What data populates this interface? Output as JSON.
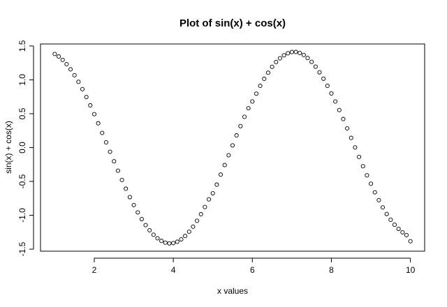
{
  "chart_data": {
    "type": "scatter",
    "title": "Plot of sin(x) + cos(x)",
    "xlabel": "x values",
    "ylabel": "sin(x) + cos(x)",
    "xlim": [
      0.64,
      10.36
    ],
    "ylim": [
      -1.53,
      1.53
    ],
    "xticks": [
      2,
      4,
      6,
      8,
      10
    ],
    "yticks": [
      -1.5,
      -1.0,
      -0.5,
      0.0,
      0.5,
      1.0,
      1.5
    ],
    "xtick_labels": [
      "2",
      "4",
      "6",
      "8",
      "10"
    ],
    "ytick_labels": [
      "-1.5",
      "-1.0",
      "-0.5",
      "0.0",
      "0.5",
      "1.0",
      "1.5"
    ],
    "grid": false,
    "marker": "open-circle",
    "x": [
      1.0,
      1.1,
      1.2,
      1.3,
      1.4,
      1.5,
      1.6,
      1.7,
      1.8,
      1.9,
      2.0,
      2.1,
      2.2,
      2.3,
      2.4,
      2.5,
      2.6,
      2.7,
      2.8,
      2.9,
      3.0,
      3.1,
      3.2,
      3.3,
      3.4,
      3.5,
      3.6,
      3.7,
      3.8,
      3.9,
      4.0,
      4.1,
      4.2,
      4.3,
      4.4,
      4.5,
      4.6,
      4.7,
      4.8,
      4.9,
      5.0,
      5.1,
      5.2,
      5.3,
      5.4,
      5.5,
      5.6,
      5.7,
      5.8,
      5.9,
      6.0,
      6.1,
      6.2,
      6.3,
      6.4,
      6.5,
      6.6,
      6.7,
      6.8,
      6.9,
      7.0,
      7.1,
      7.2,
      7.3,
      7.4,
      7.5,
      7.6,
      7.7,
      7.8,
      7.9,
      8.0,
      8.1,
      8.2,
      8.3,
      8.4,
      8.5,
      8.6,
      8.7,
      8.8,
      8.9,
      9.0,
      9.1,
      9.2,
      9.3,
      9.4,
      9.5,
      9.6,
      9.7,
      9.8,
      9.9,
      10.0
    ],
    "y": [
      1.3818,
      1.3448,
      1.2943,
      1.2312,
      1.1554,
      1.0682,
      0.9704,
      0.8626,
      0.7465,
      0.6237,
      0.4932,
      0.3584,
      0.2163,
      0.0767,
      -0.062,
      -0.2027,
      -0.3413,
      -0.4777,
      -0.6075,
      -0.7319,
      -0.8489,
      -0.9571,
      -1.0564,
      -1.1449,
      -1.2212,
      -1.2872,
      -1.3395,
      -1.3779,
      -1.4037,
      -1.4145,
      -1.4104,
      -1.3906,
      -1.3552,
      -1.3056,
      -1.2429,
      -1.168,
      -1.081,
      -0.9838,
      -0.8777,
      -0.7642,
      -0.6752,
      -0.547,
      -0.3991,
      -0.2586,
      -0.1133,
      0.0319,
      0.1806,
      0.3164,
      0.4539,
      0.5808,
      0.6808,
      0.7957,
      0.912,
      1.0151,
      1.1052,
      1.1923,
      1.2628,
      1.3185,
      1.3625,
      1.3928,
      1.4104,
      1.4117,
      1.3971,
      1.3677,
      1.3235,
      1.2657,
      1.1944,
      1.1111,
      1.0171,
      0.9125,
      0.7989,
      0.6801,
      0.5538,
      0.4213,
      0.2831,
      0.1431,
      0.0023,
      -0.1379,
      -0.2756,
      -0.4102,
      -0.5339,
      -0.6609,
      -0.7766,
      -0.8836,
      -0.9804,
      -1.0658,
      -1.1392,
      -1.2015,
      -1.2521,
      -1.2933,
      -1.3831
    ]
  }
}
